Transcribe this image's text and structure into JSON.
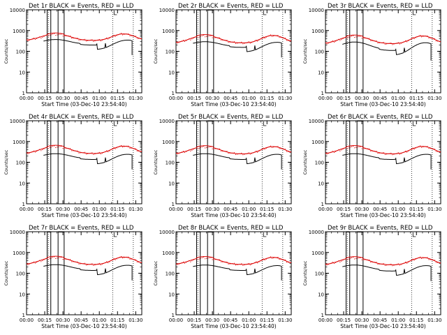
{
  "figure": {
    "time_axis_label": "Start Time (03-Dec-10 23:54:40)",
    "y_axis_label": "Counts/sec"
  },
  "chart_data": [
    {
      "type": "line",
      "title": "Det 1r BLACK = Events, RED = LLD",
      "xlabel": "Start Time (03-Dec-10 23:54:40)",
      "ylabel": "Counts/sec",
      "xlim": [
        0,
        95
      ],
      "ylim": [
        1,
        10000
      ],
      "yscale": "log",
      "x_tick_labels": [
        "00:00",
        "00:15",
        "00:30",
        "00:45",
        "01:00",
        "01:15",
        "01:30"
      ],
      "y_tick_labels": [
        "1",
        "10",
        "100",
        "1000",
        "10000"
      ],
      "series": [
        {
          "name": "Events",
          "color": "#000000",
          "style": "black",
          "base": 220,
          "peak": 150
        },
        {
          "name": "LLD",
          "color": "#dd0000",
          "style": "red",
          "base": 330,
          "peak": 360
        }
      ],
      "saa": {
        "verticals": [
          17,
          20,
          26,
          31
        ],
        "spike_top": 10000
      },
      "dotted_markers": [
        18,
        71,
        88
      ],
      "end_time": 87
    },
    {
      "type": "line",
      "title": "Det 2r BLACK = Events, RED = LLD",
      "xlabel": "Start Time (03-Dec-10 23:54:40)",
      "ylabel": "Counts/sec",
      "xlim": [
        0,
        95
      ],
      "ylim": [
        1,
        10000
      ],
      "yscale": "log",
      "x_tick_labels": [
        "00:00",
        "00:15",
        "00:30",
        "00:45",
        "01:00",
        "01:15",
        "01:30"
      ],
      "y_tick_labels": [
        "1",
        "10",
        "100",
        "1000",
        "10000"
      ],
      "series": [
        {
          "name": "Events",
          "color": "#000000",
          "style": "black",
          "base": 170,
          "peak": 120
        },
        {
          "name": "LLD",
          "color": "#dd0000",
          "style": "red",
          "base": 250,
          "peak": 330
        }
      ],
      "saa": {
        "verticals": [
          17,
          20,
          26,
          31
        ],
        "spike_top": 10000
      },
      "dotted_markers": [
        18,
        71,
        88
      ],
      "end_time": 87
    },
    {
      "type": "line",
      "title": "Det 3r BLACK = Events, RED = LLD",
      "xlabel": "Start Time (03-Dec-10 23:54:40)",
      "ylabel": "Counts/sec",
      "xlim": [
        0,
        95
      ],
      "ylim": [
        1,
        10000
      ],
      "yscale": "log",
      "x_tick_labels": [
        "00:00",
        "00:15",
        "00:30",
        "00:45",
        "01:00",
        "01:15",
        "01:30"
      ],
      "y_tick_labels": [
        "1",
        "10",
        "100",
        "1000",
        "10000"
      ],
      "series": [
        {
          "name": "Events",
          "color": "#000000",
          "style": "black",
          "base": 120,
          "peak": 160
        },
        {
          "name": "LLD",
          "color": "#dd0000",
          "style": "red",
          "base": 230,
          "peak": 320
        }
      ],
      "saa": {
        "verticals": [
          17,
          20,
          26,
          31
        ],
        "spike_top": 10000
      },
      "dotted_markers": [
        18,
        71,
        88
      ],
      "end_time": 87
    },
    {
      "type": "line",
      "title": "Det 4r BLACK = Events, RED = LLD",
      "xlabel": "Start Time (03-Dec-10 23:54:40)",
      "ylabel": "Counts/sec",
      "xlim": [
        0,
        95
      ],
      "ylim": [
        1,
        10000
      ],
      "yscale": "log",
      "x_tick_labels": [
        "00:00",
        "00:15",
        "00:30",
        "00:45",
        "01:00",
        "01:15",
        "01:30"
      ],
      "y_tick_labels": [
        "1",
        "10",
        "100",
        "1000",
        "10000"
      ],
      "series": [
        {
          "name": "Events",
          "color": "#000000",
          "style": "black",
          "base": 150,
          "peak": 110
        },
        {
          "name": "LLD",
          "color": "#dd0000",
          "style": "red",
          "base": 260,
          "peak": 340
        }
      ],
      "saa": {
        "verticals": [
          17,
          20,
          26,
          31
        ],
        "spike_top": 10000
      },
      "dotted_markers": [
        18,
        71,
        88
      ],
      "end_time": 87
    },
    {
      "type": "line",
      "title": "Det 5r BLACK = Events, RED = LLD",
      "xlabel": "Start Time (03-Dec-10 23:54:40)",
      "ylabel": "Counts/sec",
      "xlim": [
        0,
        95
      ],
      "ylim": [
        1,
        10000
      ],
      "yscale": "log",
      "x_tick_labels": [
        "00:00",
        "00:15",
        "00:30",
        "00:45",
        "01:00",
        "01:15",
        "01:30"
      ],
      "y_tick_labels": [
        "1",
        "10",
        "100",
        "1000",
        "10000"
      ],
      "series": [
        {
          "name": "Events",
          "color": "#000000",
          "style": "black",
          "base": 150,
          "peak": 110
        },
        {
          "name": "LLD",
          "color": "#dd0000",
          "style": "red",
          "base": 250,
          "peak": 320
        }
      ],
      "saa": {
        "verticals": [
          17,
          20,
          26,
          31
        ],
        "spike_top": 10000
      },
      "dotted_markers": [
        18,
        71,
        88
      ],
      "end_time": 87
    },
    {
      "type": "line",
      "title": "Det 6r BLACK = Events, RED = LLD",
      "xlabel": "Start Time (03-Dec-10 23:54:40)",
      "ylabel": "Counts/sec",
      "xlim": [
        0,
        95
      ],
      "ylim": [
        1,
        10000
      ],
      "yscale": "log",
      "x_tick_labels": [
        "00:00",
        "00:15",
        "00:30",
        "00:45",
        "01:00",
        "01:15",
        "01:30"
      ],
      "y_tick_labels": [
        "1",
        "10",
        "100",
        "1000",
        "10000"
      ],
      "series": [
        {
          "name": "Events",
          "color": "#000000",
          "style": "black",
          "base": 150,
          "peak": 110
        },
        {
          "name": "LLD",
          "color": "#dd0000",
          "style": "red",
          "base": 250,
          "peak": 330
        }
      ],
      "saa": {
        "verticals": [
          17,
          20,
          26,
          31
        ],
        "spike_top": 10000
      },
      "dotted_markers": [
        18,
        71,
        88
      ],
      "end_time": 87
    },
    {
      "type": "line",
      "title": "Det 7r BLACK = Events, RED = LLD",
      "xlabel": "Start Time (03-Dec-10 23:54:40)",
      "ylabel": "Counts/sec",
      "xlim": [
        0,
        95
      ],
      "ylim": [
        1,
        10000
      ],
      "yscale": "log",
      "x_tick_labels": [
        "00:00",
        "00:15",
        "00:30",
        "00:45",
        "01:00",
        "01:15",
        "01:30"
      ],
      "y_tick_labels": [
        "1",
        "10",
        "100",
        "1000",
        "10000"
      ],
      "series": [
        {
          "name": "Events",
          "color": "#000000",
          "style": "black",
          "base": 150,
          "peak": 110
        },
        {
          "name": "LLD",
          "color": "#dd0000",
          "style": "red",
          "base": 260,
          "peak": 340
        }
      ],
      "saa": {
        "verticals": [
          17,
          20,
          26,
          31
        ],
        "spike_top": 10000
      },
      "dotted_markers": [
        18,
        71,
        88
      ],
      "end_time": 87
    },
    {
      "type": "line",
      "title": "Det 8r BLACK = Events, RED = LLD",
      "xlabel": "Start Time (03-Dec-10 23:54:40)",
      "ylabel": "Counts/sec",
      "xlim": [
        0,
        95
      ],
      "ylim": [
        1,
        10000
      ],
      "yscale": "log",
      "x_tick_labels": [
        "00:00",
        "00:15",
        "00:30",
        "00:45",
        "01:00",
        "01:15",
        "01:30"
      ],
      "y_tick_labels": [
        "1",
        "10",
        "100",
        "1000",
        "10000"
      ],
      "series": [
        {
          "name": "Events",
          "color": "#000000",
          "style": "black",
          "base": 150,
          "peak": 100
        },
        {
          "name": "LLD",
          "color": "#dd0000",
          "style": "red",
          "base": 260,
          "peak": 320
        }
      ],
      "saa": {
        "verticals": [
          17,
          20,
          26,
          31
        ],
        "spike_top": 10000
      },
      "dotted_markers": [
        18,
        71,
        88
      ],
      "end_time": 87
    },
    {
      "type": "line",
      "title": "Det 9r BLACK = Events, RED = LLD",
      "xlabel": "Start Time (03-Dec-10 23:54:40)",
      "ylabel": "Counts/sec",
      "xlim": [
        0,
        95
      ],
      "ylim": [
        1,
        10000
      ],
      "yscale": "log",
      "x_tick_labels": [
        "00:00",
        "00:15",
        "00:30",
        "00:45",
        "01:00",
        "01:15",
        "01:30"
      ],
      "y_tick_labels": [
        "1",
        "10",
        "100",
        "1000",
        "10000"
      ],
      "series": [
        {
          "name": "Events",
          "color": "#000000",
          "style": "black",
          "base": 140,
          "peak": 110
        },
        {
          "name": "LLD",
          "color": "#dd0000",
          "style": "red",
          "base": 250,
          "peak": 320
        }
      ],
      "saa": {
        "verticals": [
          17,
          20,
          26,
          31
        ],
        "spike_top": 10000
      },
      "dotted_markers": [
        18,
        71,
        88
      ],
      "end_time": 87
    }
  ]
}
